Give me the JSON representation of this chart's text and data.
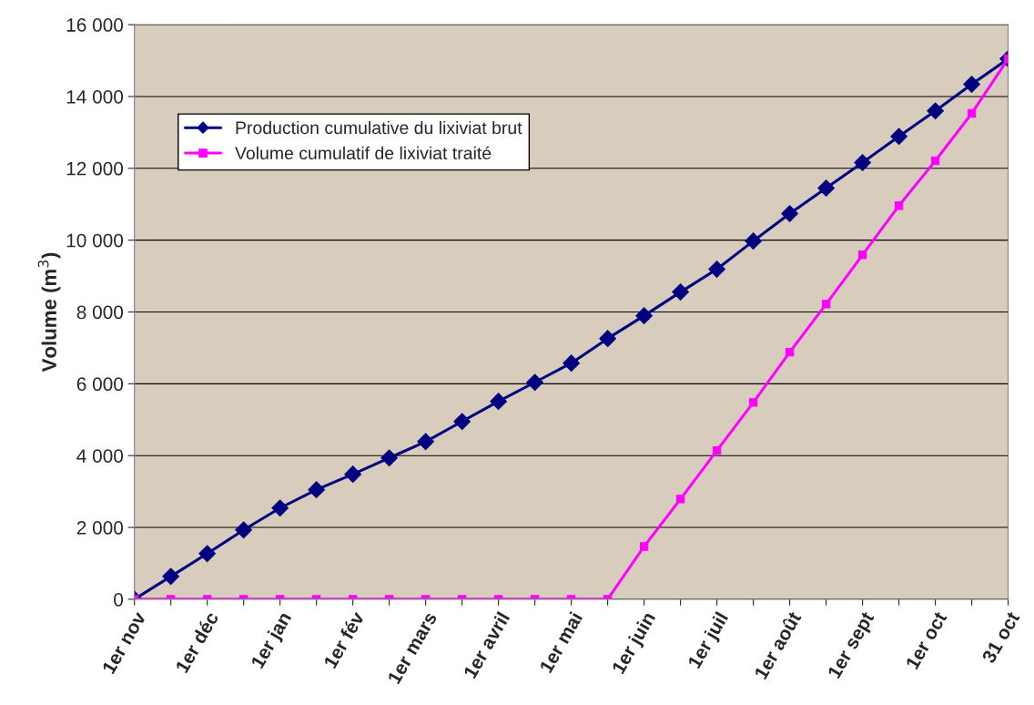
{
  "chart_data": {
    "type": "line",
    "ylabel": "Volume (m$^{3}$)",
    "categories": [
      "1er nov",
      null,
      "1er déc",
      null,
      "1er jan",
      null,
      "1er fév",
      null,
      "1er mars",
      null,
      "1er avril",
      null,
      "1er mai",
      null,
      "1er juin",
      null,
      "1er juil",
      null,
      "1er août",
      null,
      "1er sept",
      null,
      "1er oct",
      null,
      "31 oct"
    ],
    "series": [
      {
        "name": "Production cumulative du lixiviat brut",
        "color": "#000080",
        "marker": "diamond",
        "values": [
          0,
          635,
          1270,
          1930,
          2540,
          3050,
          3480,
          3935,
          4390,
          4950,
          5510,
          6040,
          6575,
          7260,
          7895,
          8555,
          9190,
          9975,
          10740,
          11450,
          12160,
          12890,
          13600,
          14340,
          15050
        ]
      },
      {
        "name": "Volume cumulatif de lixiviat traité",
        "color": "#ff00ff",
        "marker": "square",
        "values": [
          0,
          0,
          0,
          0,
          0,
          0,
          0,
          0,
          0,
          0,
          0,
          0,
          0,
          0,
          1470,
          2790,
          4140,
          5480,
          6880,
          8220,
          9590,
          10960,
          12210,
          13530,
          15050
        ]
      }
    ],
    "ylim": [
      0,
      16000
    ],
    "yticks": [
      0,
      {
        "value": 2000,
        "label": "2 000"
      },
      {
        "value": 4000,
        "label": "4 000"
      },
      {
        "value": 6000,
        "label": "6 000"
      },
      {
        "value": 8000,
        "label": "8 000"
      },
      {
        "value": 10000,
        "label": "10 000"
      },
      {
        "value": 12000,
        "label": "12 000"
      },
      {
        "value": 14000,
        "label": "14 000"
      },
      {
        "value": 16000,
        "label": "16 000"
      }
    ],
    "grid": "y",
    "legend": "top left"
  }
}
